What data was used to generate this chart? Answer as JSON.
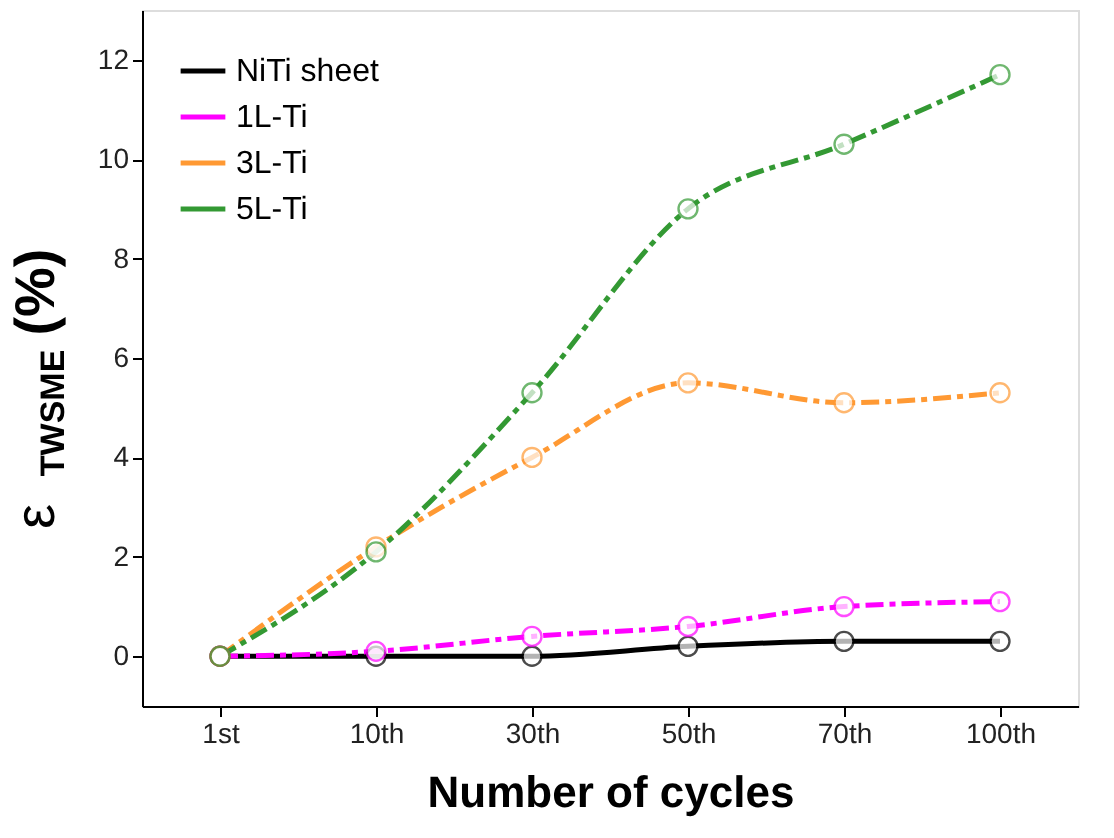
{
  "chart_data": {
    "type": "line",
    "xlabel": "Number of cycles",
    "ylabel": "ε$_{TWSME}$ (%)",
    "categories": [
      "1st",
      "10th",
      "30th",
      "50th",
      "70th",
      "100th"
    ],
    "series": [
      {
        "name": "NiTi sheet",
        "color": "#000000",
        "values": [
          0,
          0,
          0,
          0.2,
          0.3,
          0.3
        ],
        "line_style": "solid"
      },
      {
        "name": "1L-Ti",
        "color": "#ff00ff",
        "values": [
          0,
          0.1,
          0.4,
          0.6,
          1.0,
          1.1
        ],
        "line_style": "dashed"
      },
      {
        "name": "3L-Ti",
        "color": "#ff9933",
        "values": [
          0,
          2.2,
          4.0,
          5.5,
          5.1,
          5.3
        ],
        "line_style": "dashed"
      },
      {
        "name": "5L-Ti",
        "color": "#339933",
        "values": [
          0,
          2.1,
          5.3,
          9.0,
          10.3,
          11.7
        ],
        "line_style": "dashed"
      }
    ],
    "ylim": [
      -1,
      13
    ],
    "yticks": [
      0,
      2,
      4,
      6,
      8,
      10,
      12
    ],
    "grid": false,
    "legend": "top left",
    "marker": "circle"
  }
}
